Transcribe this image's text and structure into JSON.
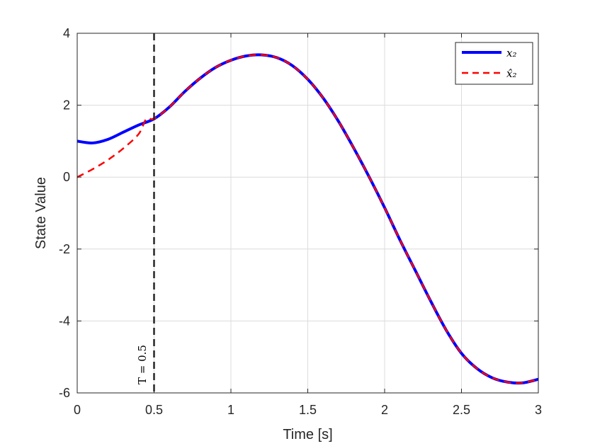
{
  "chart_data": {
    "type": "line",
    "title": "",
    "xlabel": "Time [s]",
    "ylabel": "State Value",
    "xlim": [
      0,
      3
    ],
    "ylim": [
      -6,
      4
    ],
    "xticks": [
      0,
      0.5,
      1,
      1.5,
      2,
      2.5,
      3
    ],
    "xtick_labels": [
      "0",
      "0.5",
      "1",
      "1.5",
      "2",
      "2.5",
      "3"
    ],
    "yticks": [
      -6,
      -4,
      -2,
      0,
      2,
      4
    ],
    "ytick_labels": [
      "-6",
      "-4",
      "-2",
      "0",
      "2",
      "4"
    ],
    "grid": true,
    "legend_position": "top-right",
    "series": [
      {
        "name": "x₂",
        "color": "#0000ff",
        "style": "solid",
        "x": [
          0,
          0.1,
          0.2,
          0.3,
          0.4,
          0.5,
          0.6,
          0.7,
          0.8,
          0.9,
          1.0,
          1.1,
          1.2,
          1.3,
          1.4,
          1.5,
          1.6,
          1.7,
          1.8,
          1.9,
          2.0,
          2.1,
          2.2,
          2.3,
          2.4,
          2.5,
          2.6,
          2.7,
          2.8,
          2.9,
          3.0
        ],
        "y": [
          1.0,
          0.95,
          1.05,
          1.25,
          1.45,
          1.62,
          1.95,
          2.38,
          2.75,
          3.05,
          3.25,
          3.37,
          3.4,
          3.32,
          3.1,
          2.72,
          2.2,
          1.55,
          0.8,
          0.0,
          -0.85,
          -1.75,
          -2.6,
          -3.45,
          -4.25,
          -4.9,
          -5.32,
          -5.58,
          -5.7,
          -5.72,
          -5.62
        ]
      },
      {
        "name": "x̂₂",
        "color": "#ff0000",
        "style": "dashed",
        "x": [
          0,
          0.1,
          0.2,
          0.3,
          0.4,
          0.45,
          0.5,
          0.6,
          0.7,
          0.8,
          0.9,
          1.0,
          1.1,
          1.2,
          1.3,
          1.4,
          1.5,
          1.6,
          1.7,
          1.8,
          1.9,
          2.0,
          2.1,
          2.2,
          2.3,
          2.4,
          2.5,
          2.6,
          2.7,
          2.8,
          2.9,
          3.0
        ],
        "y": [
          0.0,
          0.22,
          0.48,
          0.8,
          1.2,
          1.62,
          1.62,
          1.95,
          2.38,
          2.75,
          3.05,
          3.25,
          3.37,
          3.4,
          3.32,
          3.1,
          2.72,
          2.2,
          1.55,
          0.8,
          0.0,
          -0.85,
          -1.75,
          -2.6,
          -3.45,
          -4.25,
          -4.9,
          -5.32,
          -5.58,
          -5.7,
          -5.72,
          -5.62
        ]
      }
    ],
    "annotations": [
      {
        "type": "vline",
        "x": 0.5,
        "color": "#262626",
        "style": "dashed",
        "label": "T = 0.5"
      }
    ]
  }
}
